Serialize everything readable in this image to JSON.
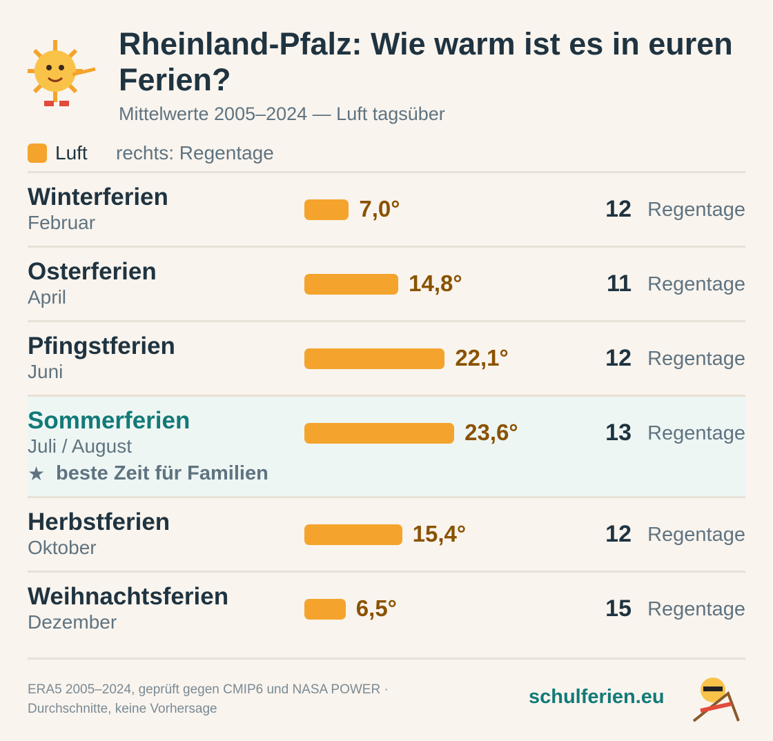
{
  "header": {
    "title": "Rheinland-Pfalz: Wie warm ist es in euren Ferien?",
    "subtitle": "Mittelwerte 2005–2024 — Luft tagsüber"
  },
  "legend": {
    "label": "Luft",
    "note": "rechts: Regentage"
  },
  "chart_data": {
    "type": "bar",
    "color": "#f4a42c",
    "categories": [
      "Winterferien",
      "Osterferien",
      "Pfingstferien",
      "Sommerferien",
      "Herbstferien",
      "Weihnachtsferien"
    ],
    "months": [
      "Februar",
      "April",
      "Juni",
      "Juli / August",
      "Oktober",
      "Dezember"
    ],
    "values": [
      7.0,
      14.8,
      22.1,
      23.6,
      15.4,
      6.5
    ],
    "value_labels": [
      "7,0°",
      "14,8°",
      "22,1°",
      "23,6°",
      "15,4°",
      "6,5°"
    ],
    "rain_days": [
      12,
      11,
      12,
      13,
      12,
      15
    ],
    "rain_unit": "Regentage",
    "highlight": {
      "index": 3,
      "note": "beste Zeit für Familien"
    }
  },
  "footer": {
    "source": [
      "ERA5 2005–2024, geprüft gegen CMIP6 und NASA POWER ·",
      "Durchschnitte, keine Vorhersage"
    ],
    "brand": "schulferien.eu"
  }
}
